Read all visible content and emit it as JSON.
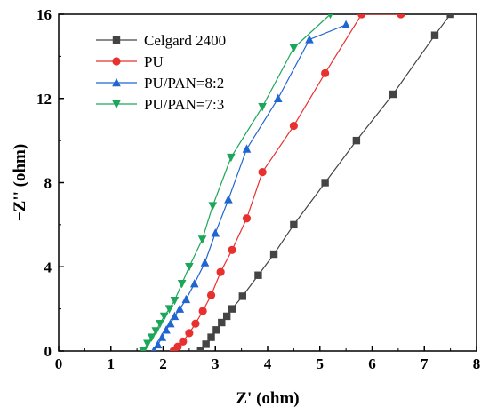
{
  "chart_data": {
    "type": "scatter",
    "xlabel": "Z' (ohm)",
    "ylabel": "−Z'' (ohm)",
    "xlim": [
      0,
      8
    ],
    "ylim": [
      0,
      16
    ],
    "xticks": [
      "0",
      "1",
      "2",
      "3",
      "4",
      "5",
      "6",
      "7",
      "8"
    ],
    "yticks": [
      "0",
      "4",
      "8",
      "12",
      "16"
    ],
    "grid": false,
    "legend_position": "top-left",
    "series": [
      {
        "name": "Celgard 2400",
        "marker": "square",
        "color": "#444444",
        "x": [
          2.72,
          2.82,
          2.92,
          3.02,
          3.12,
          3.22,
          3.32,
          3.52,
          3.82,
          4.12,
          4.5,
          5.1,
          5.7,
          6.4,
          7.2,
          7.5
        ],
        "y": [
          0.0,
          0.32,
          0.65,
          1.0,
          1.35,
          1.65,
          2.0,
          2.6,
          3.6,
          4.6,
          6.0,
          8.0,
          10.0,
          12.2,
          15.0,
          16.0
        ]
      },
      {
        "name": "PU",
        "marker": "circle",
        "color": "#e8312f",
        "x": [
          2.2,
          2.28,
          2.38,
          2.5,
          2.62,
          2.76,
          2.92,
          3.1,
          3.32,
          3.6,
          3.9,
          4.5,
          5.1,
          5.8,
          6.55
        ],
        "y": [
          0.0,
          0.2,
          0.45,
          0.85,
          1.3,
          1.9,
          2.65,
          3.75,
          4.8,
          6.3,
          8.5,
          10.7,
          13.2,
          16.0,
          16.0
        ]
      },
      {
        "name": "PU/PAN=8:2",
        "marker": "triangle-up",
        "color": "#1f66d1",
        "x": [
          1.82,
          1.9,
          1.98,
          2.06,
          2.14,
          2.22,
          2.32,
          2.44,
          2.6,
          2.8,
          3.0,
          3.25,
          3.6,
          4.2,
          4.8,
          5.5
        ],
        "y": [
          0.0,
          0.3,
          0.65,
          1.0,
          1.3,
          1.65,
          2.0,
          2.45,
          3.2,
          4.2,
          5.6,
          7.2,
          9.6,
          12.0,
          14.8,
          15.5
        ],
        "_note": "visible markers"
      },
      {
        "name": "PU/PAN=7:3",
        "marker": "triangle-down",
        "color": "#1ca65a",
        "x": [
          1.62,
          1.7,
          1.78,
          1.86,
          1.94,
          2.02,
          2.12,
          2.22,
          2.36,
          2.5,
          2.75,
          2.95,
          3.3,
          3.9,
          4.5,
          5.2
        ],
        "y": [
          0.0,
          0.35,
          0.65,
          0.95,
          1.3,
          1.65,
          2.0,
          2.4,
          3.2,
          4.0,
          5.3,
          6.9,
          9.2,
          11.6,
          14.4,
          16.0
        ]
      }
    ]
  }
}
